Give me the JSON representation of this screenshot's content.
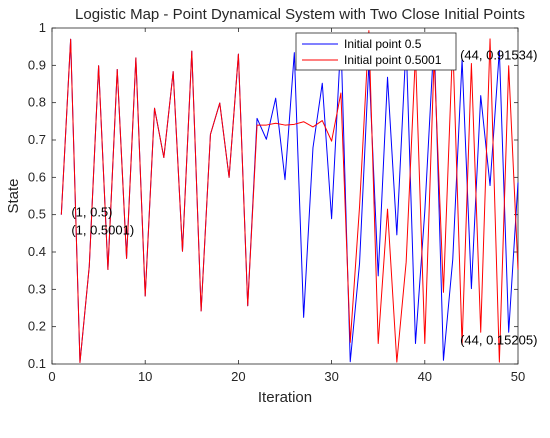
{
  "chart_data": {
    "type": "line",
    "title": "Logistic Map - Point Dynamical System with Two Close Initial Points",
    "xlabel": "Iteration",
    "ylabel": "State",
    "xlim": [
      0,
      50
    ],
    "ylim": [
      0.1,
      1
    ],
    "x_ticks": [
      "0",
      "10",
      "20",
      "30",
      "40",
      "50"
    ],
    "y_ticks": [
      "0.1",
      "0.2",
      "0.3",
      "0.4",
      "0.5",
      "0.6",
      "0.7",
      "0.8",
      "0.9",
      "1"
    ],
    "grid": false,
    "legend_position": "top-right",
    "x": [
      1,
      2,
      3,
      4,
      5,
      6,
      7,
      8,
      9,
      10,
      11,
      12,
      13,
      14,
      15,
      16,
      17,
      18,
      19,
      20,
      21,
      22,
      23,
      24,
      25,
      26,
      27,
      28,
      29,
      30,
      31,
      32,
      33,
      34,
      35,
      36,
      37,
      38,
      39,
      40,
      41,
      42,
      43,
      44,
      45,
      46,
      47,
      48,
      49,
      50
    ],
    "series": [
      {
        "name": "Initial point 0.5",
        "color": "#0000ff",
        "values": [
          0.5,
          0.97,
          0.104,
          0.362,
          0.899,
          0.353,
          0.889,
          0.383,
          0.92,
          0.282,
          0.785,
          0.653,
          0.883,
          0.402,
          0.938,
          0.242,
          0.715,
          0.799,
          0.6,
          0.93,
          0.256,
          0.758,
          0.702,
          0.812,
          0.594,
          0.934,
          0.225,
          0.679,
          0.852,
          0.489,
          0.972,
          0.106,
          0.37,
          0.905,
          0.336,
          0.868,
          0.446,
          0.96,
          0.155,
          0.509,
          0.975,
          0.11,
          0.38,
          0.91534,
          0.302,
          0.819,
          0.578,
          0.94,
          0.185,
          0.586
        ]
      },
      {
        "name": "Initial point 0.5001",
        "color": "#ff0000",
        "values": [
          0.5001,
          0.97,
          0.104,
          0.362,
          0.899,
          0.353,
          0.889,
          0.383,
          0.92,
          0.282,
          0.785,
          0.653,
          0.883,
          0.402,
          0.938,
          0.242,
          0.715,
          0.799,
          0.6,
          0.93,
          0.256,
          0.74,
          0.74,
          0.745,
          0.74,
          0.742,
          0.749,
          0.735,
          0.752,
          0.697,
          0.826,
          0.158,
          0.522,
          0.993,
          0.155,
          0.515,
          0.105,
          0.373,
          0.931,
          0.155,
          0.921,
          0.292,
          0.964,
          0.15205,
          0.905,
          0.185,
          0.971,
          0.105,
          0.899,
          0.353
        ]
      }
    ],
    "annotations": [
      {
        "text": "(1, 0.5)",
        "x": 1,
        "y": 0.5
      },
      {
        "text": "(1, 0.5001)",
        "x": 1,
        "y": 0.5001
      },
      {
        "text": "(44, 0.91534)",
        "x": 44,
        "y": 0.91534
      },
      {
        "text": "(44, 0.15205)",
        "x": 44,
        "y": 0.15205
      }
    ]
  }
}
